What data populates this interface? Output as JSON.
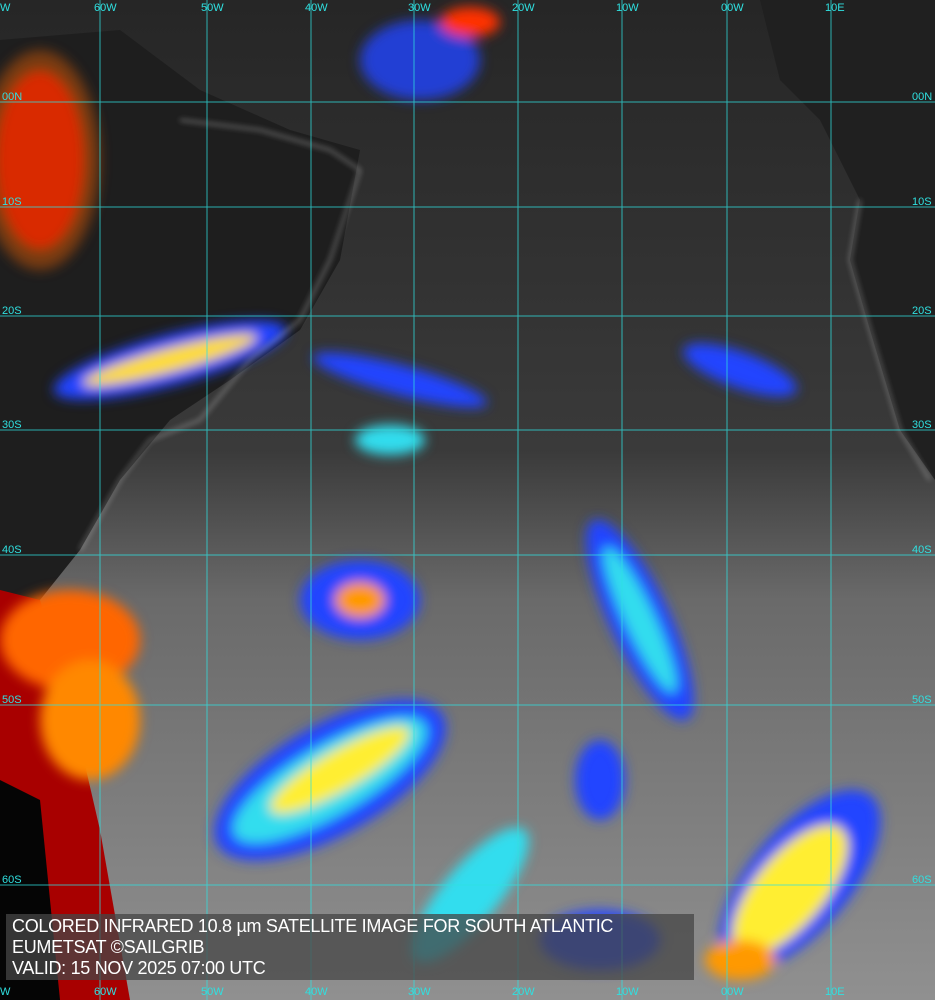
{
  "caption": {
    "title": "COLORED INFRARED 10.8 µm SATELLITE IMAGE FOR SOUTH ATLANTIC",
    "source": "EUMETSAT ©SAILGRIB",
    "valid": "VALID:  15 NOV 2025 07:00 UTC"
  },
  "grid": {
    "longitudes": [
      "W",
      "60W",
      "50W",
      "40W",
      "30W",
      "20W",
      "10W",
      "00W",
      "10E"
    ],
    "latitudes": [
      "00N",
      "10S",
      "20S",
      "30S",
      "40S",
      "50S",
      "60S"
    ],
    "line_color": "#2fe0e0"
  },
  "palette": {
    "cold_red": "#b00000",
    "orange": "#ff8800",
    "yellow": "#ffee33",
    "cyan": "#33ddee",
    "blue": "#0022dd",
    "ocean_dark": "#262626",
    "ocean_light": "#8a8a8a",
    "coastline": "#ffffff"
  }
}
